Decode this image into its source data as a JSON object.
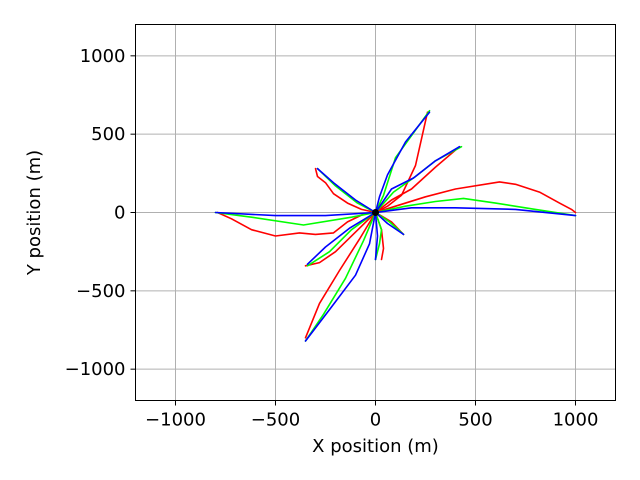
{
  "chart_data": {
    "type": "line",
    "title": "",
    "xlabel": "X position (m)",
    "ylabel": "Y position (m)",
    "xlim": [
      -1200,
      1200
    ],
    "ylim": [
      -1200,
      1200
    ],
    "x_ticks": [
      -1000,
      -500,
      0,
      500,
      1000
    ],
    "y_ticks": [
      -1000,
      -500,
      0,
      500,
      1000
    ],
    "x_tick_labels": [
      "−1000",
      "−500",
      "0",
      "500",
      "1000"
    ],
    "y_tick_labels": [
      "−1000",
      "−500",
      "0",
      "500",
      "1000"
    ],
    "grid": true,
    "legend": "none",
    "colors": {
      "red": "#ff0000",
      "green": "#00ff00",
      "blue": "#0000ff",
      "grid": "#b0b0b0",
      "axes": "#000000"
    },
    "series": [
      {
        "color": "#ff0000",
        "trajectories": [
          [
            [
              0,
              0
            ],
            [
              60,
              40
            ],
            [
              130,
              110
            ],
            [
              200,
              300
            ],
            [
              260,
              640
            ]
          ],
          [
            [
              0,
              0
            ],
            [
              100,
              40
            ],
            [
              250,
              100
            ],
            [
              400,
              150
            ],
            [
              620,
              195
            ],
            [
              700,
              180
            ],
            [
              820,
              130
            ],
            [
              920,
              60
            ],
            [
              980,
              20
            ],
            [
              1000,
              0
            ]
          ],
          [
            [
              0,
              0
            ],
            [
              80,
              80
            ],
            [
              180,
              150
            ],
            [
              300,
              290
            ],
            [
              420,
              420
            ]
          ],
          [
            [
              0,
              0
            ],
            [
              -60,
              -10
            ],
            [
              -140,
              -60
            ],
            [
              -210,
              -130
            ],
            [
              -300,
              -140
            ],
            [
              -380,
              -130
            ],
            [
              -500,
              -150
            ],
            [
              -620,
              -110
            ],
            [
              -720,
              -40
            ],
            [
              -790,
              0
            ]
          ],
          [
            [
              0,
              0
            ],
            [
              -70,
              20
            ],
            [
              -140,
              60
            ],
            [
              -210,
              120
            ],
            [
              -250,
              190
            ],
            [
              -290,
              230
            ],
            [
              -300,
              280
            ]
          ],
          [
            [
              0,
              0
            ],
            [
              -80,
              -100
            ],
            [
              -200,
              -250
            ],
            [
              -280,
              -320
            ],
            [
              -350,
              -340
            ]
          ],
          [
            [
              0,
              0
            ],
            [
              -80,
              -170
            ],
            [
              -180,
              -370
            ],
            [
              -280,
              -580
            ],
            [
              -350,
              -800
            ]
          ],
          [
            [
              0,
              0
            ],
            [
              30,
              -110
            ],
            [
              40,
              -230
            ],
            [
              30,
              -300
            ]
          ],
          [
            [
              0,
              0
            ],
            [
              80,
              -60
            ],
            [
              140,
              -140
            ]
          ]
        ]
      },
      {
        "color": "#00ff00",
        "trajectories": [
          [
            [
              0,
              0
            ],
            [
              40,
              110
            ],
            [
              100,
              350
            ],
            [
              180,
              490
            ],
            [
              270,
              650
            ]
          ],
          [
            [
              0,
              0
            ],
            [
              150,
              40
            ],
            [
              300,
              70
            ],
            [
              440,
              90
            ],
            [
              600,
              60
            ],
            [
              800,
              20
            ],
            [
              1000,
              -20
            ]
          ],
          [
            [
              0,
              0
            ],
            [
              90,
              130
            ],
            [
              200,
              230
            ],
            [
              300,
              330
            ],
            [
              430,
              420
            ]
          ],
          [
            [
              0,
              0
            ],
            [
              -120,
              -30
            ],
            [
              -360,
              -80
            ],
            [
              -620,
              -30
            ],
            [
              -800,
              0
            ]
          ],
          [
            [
              0,
              0
            ],
            [
              -90,
              60
            ],
            [
              -200,
              170
            ],
            [
              -290,
              280
            ]
          ],
          [
            [
              0,
              0
            ],
            [
              -120,
              -110
            ],
            [
              -230,
              -250
            ],
            [
              -340,
              -340
            ]
          ],
          [
            [
              0,
              0
            ],
            [
              -60,
              -180
            ],
            [
              -150,
              -420
            ],
            [
              -260,
              -650
            ],
            [
              -350,
              -820
            ]
          ],
          [
            [
              0,
              0
            ],
            [
              30,
              -110
            ],
            [
              20,
              -200
            ],
            [
              0,
              -300
            ]
          ],
          [
            [
              0,
              0
            ],
            [
              70,
              -60
            ],
            [
              140,
              -140
            ]
          ]
        ]
      },
      {
        "color": "#0000ff",
        "trajectories": [
          [
            [
              0,
              0
            ],
            [
              20,
              100
            ],
            [
              60,
              240
            ],
            [
              150,
              450
            ],
            [
              270,
              640
            ]
          ],
          [
            [
              0,
              0
            ],
            [
              180,
              30
            ],
            [
              400,
              30
            ],
            [
              700,
              20
            ],
            [
              1000,
              -20
            ]
          ],
          [
            [
              0,
              0
            ],
            [
              80,
              150
            ],
            [
              190,
              220
            ],
            [
              300,
              330
            ],
            [
              420,
              420
            ]
          ],
          [
            [
              0,
              0
            ],
            [
              -250,
              -20
            ],
            [
              -500,
              -20
            ],
            [
              -800,
              0
            ]
          ],
          [
            [
              0,
              0
            ],
            [
              -100,
              80
            ],
            [
              -210,
              190
            ],
            [
              -290,
              280
            ]
          ],
          [
            [
              0,
              0
            ],
            [
              -130,
              -100
            ],
            [
              -250,
              -220
            ],
            [
              -340,
              -330
            ]
          ],
          [
            [
              0,
              0
            ],
            [
              -30,
              -200
            ],
            [
              -100,
              -400
            ],
            [
              -230,
              -620
            ],
            [
              -350,
              -820
            ]
          ],
          [
            [
              0,
              0
            ],
            [
              10,
              -150
            ],
            [
              0,
              -300
            ]
          ],
          [
            [
              0,
              0
            ],
            [
              60,
              -70
            ],
            [
              140,
              -140
            ]
          ]
        ]
      }
    ]
  }
}
